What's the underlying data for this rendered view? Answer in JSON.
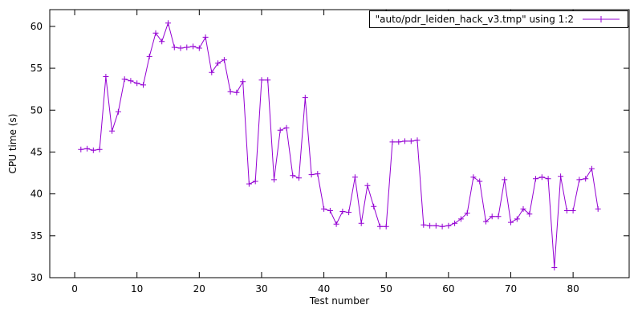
{
  "chart_data": {
    "type": "line",
    "legend_label": "\"auto/pdr_leiden_hack_v3.tmp\" using 1:2",
    "xlabel": "Test number",
    "ylabel": "CPU time (s)",
    "x_ticks": [
      0,
      10,
      20,
      30,
      40,
      50,
      60,
      70,
      80
    ],
    "y_ticks": [
      30,
      35,
      40,
      45,
      50,
      55,
      60
    ],
    "xlim": [
      -4,
      89
    ],
    "ylim": [
      30,
      62
    ],
    "grid": false,
    "legend_position": "top-right",
    "line_color": "#9400d3",
    "marker": "plus",
    "x": [
      1,
      2,
      3,
      4,
      5,
      6,
      7,
      8,
      9,
      10,
      11,
      12,
      13,
      14,
      15,
      16,
      17,
      18,
      19,
      20,
      21,
      22,
      23,
      24,
      25,
      26,
      27,
      28,
      29,
      30,
      31,
      32,
      33,
      34,
      35,
      36,
      37,
      38,
      39,
      40,
      41,
      42,
      43,
      44,
      45,
      46,
      47,
      48,
      49,
      50,
      51,
      52,
      53,
      54,
      55,
      56,
      57,
      58,
      59,
      60,
      61,
      62,
      63,
      64,
      65,
      66,
      67,
      68,
      69,
      70,
      71,
      72,
      73,
      74,
      75,
      76,
      77,
      78,
      79,
      80,
      81,
      82,
      83,
      84
    ],
    "y": [
      45.3,
      45.4,
      45.2,
      45.3,
      54.0,
      47.5,
      49.8,
      53.7,
      53.5,
      53.2,
      53.0,
      56.4,
      59.2,
      58.2,
      60.4,
      57.5,
      57.4,
      57.5,
      57.6,
      57.4,
      58.7,
      54.5,
      55.6,
      56.0,
      52.2,
      52.1,
      53.4,
      41.2,
      41.5,
      53.6,
      53.6,
      41.7,
      47.6,
      47.9,
      42.2,
      41.9,
      51.5,
      42.3,
      42.4,
      38.2,
      38.0,
      36.4,
      37.9,
      37.8,
      42.0,
      36.5,
      41.0,
      38.5,
      36.1,
      36.1,
      46.2,
      46.2,
      46.3,
      46.3,
      46.4,
      36.3,
      36.2,
      36.2,
      36.1,
      36.2,
      36.5,
      37.0,
      37.7,
      42.0,
      41.5,
      36.7,
      37.3,
      37.3,
      41.7,
      36.6,
      37.0,
      38.2,
      37.6,
      41.8,
      42.0,
      41.8,
      31.2,
      42.1,
      38.0,
      38.0,
      41.7,
      41.8,
      43.0,
      38.2
    ]
  }
}
